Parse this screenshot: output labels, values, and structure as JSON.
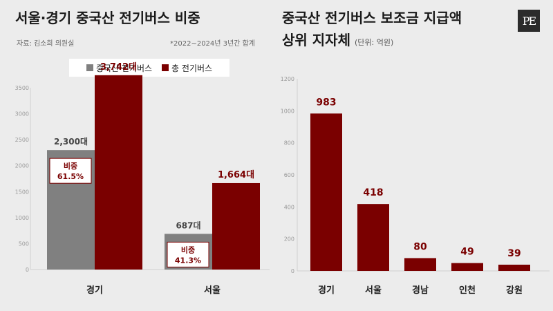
{
  "left": {
    "title": "서울·경기 중국산 전기버스 비중",
    "source": "자료: 김소희 의원실",
    "note": "*2022~2024년 3년간 합계",
    "legend": [
      {
        "label": "중국산 전기버스",
        "color": "#808080"
      },
      {
        "label": "총 전기버스",
        "color": "#7a0000"
      }
    ],
    "share_label": "비중"
  },
  "right": {
    "title_line1": "중국산 전기버스 보조금 지급액",
    "title_line2": "상위 지자체",
    "unit": "(단위: 억원)"
  },
  "logo": "PE",
  "colors": {
    "gray": "#808080",
    "dark_red": "#7a0000",
    "background": "#ececec"
  },
  "chart_data": [
    {
      "type": "bar",
      "categories": [
        "경기",
        "서울"
      ],
      "series": [
        {
          "name": "중국산 전기버스",
          "values": [
            2300,
            687
          ],
          "labels": [
            "2,300대",
            "687대"
          ]
        },
        {
          "name": "총 전기버스",
          "values": [
            3742,
            1664
          ],
          "labels": [
            "3,742대",
            "1,664대"
          ]
        }
      ],
      "share": [
        "61.5%",
        "41.3%"
      ],
      "ylim": [
        0,
        3500
      ],
      "yticks": [
        0,
        500,
        1000,
        1500,
        2000,
        2500,
        3000,
        3500
      ],
      "grid": false,
      "legend_position": "top"
    },
    {
      "type": "bar",
      "categories": [
        "경기",
        "서울",
        "경남",
        "인천",
        "강원"
      ],
      "values": [
        983,
        418,
        80,
        49,
        39
      ],
      "ylim": [
        0,
        1200
      ],
      "yticks": [
        0,
        200,
        400,
        600,
        800,
        1000,
        1200
      ],
      "grid": false
    }
  ]
}
